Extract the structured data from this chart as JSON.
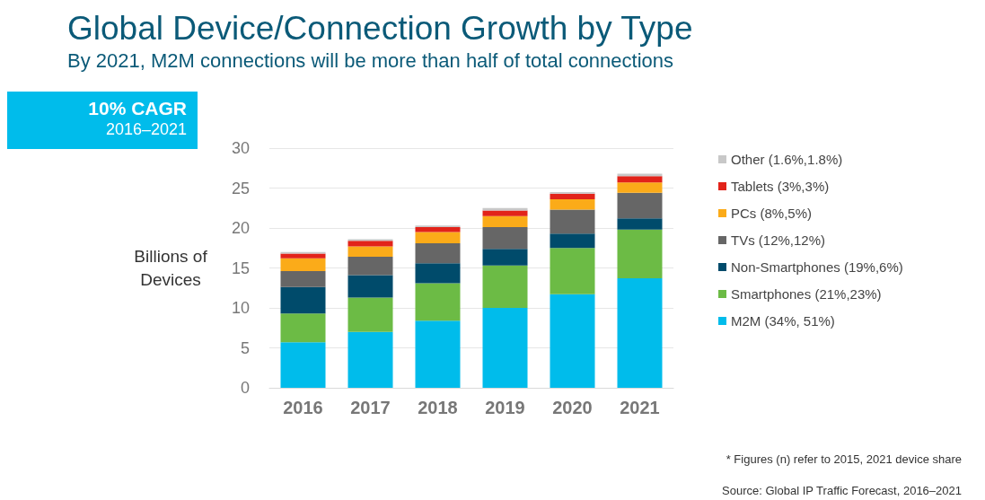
{
  "chart_data": {
    "type": "bar",
    "title": "Global Device/Connection Growth by Type",
    "subtitle": "By 2021, M2M connections will be more than half of total connections",
    "ylabel": "Billions of\nDevices",
    "categories": [
      "2016",
      "2017",
      "2018",
      "2019",
      "2020",
      "2021"
    ],
    "stacked": true,
    "ylim": [
      0,
      30
    ],
    "yticks": [
      0,
      5,
      10,
      15,
      20,
      25,
      30
    ],
    "grid": "y",
    "legend": "right",
    "annotations": [
      "10% CAGR",
      "2016–2021",
      "* Figures (n) refer to 2015, 2021 device share",
      "Source: Global IP Traffic Forecast, 2016–2021"
    ],
    "series": [
      {
        "name": "M2M (34%, 51%)",
        "color": "#00bceb",
        "values": [
          5.7,
          7.0,
          8.4,
          10.0,
          11.7,
          13.7
        ]
      },
      {
        "name": "Smartphones (21%,23%)",
        "color": "#6cbb45",
        "values": [
          3.6,
          4.3,
          4.7,
          5.3,
          5.8,
          6.1
        ]
      },
      {
        "name": "Non-Smartphones (19%,6%)",
        "color": "#004b6b",
        "values": [
          3.3,
          2.8,
          2.5,
          2.1,
          1.8,
          1.4
        ]
      },
      {
        "name": "TVs (12%,12%)",
        "color": "#666666",
        "values": [
          2.0,
          2.3,
          2.5,
          2.7,
          3.0,
          3.2
        ]
      },
      {
        "name": "PCs (8%,5%)",
        "color": "#fbab19",
        "values": [
          1.6,
          1.3,
          1.4,
          1.4,
          1.3,
          1.3
        ]
      },
      {
        "name": "Tablets (3%,3%)",
        "color": "#e2231a",
        "values": [
          0.6,
          0.7,
          0.6,
          0.7,
          0.7,
          0.8
        ]
      },
      {
        "name": "Other (1.6%,1.8%)",
        "color": "#c8c8c8",
        "values": [
          0.2,
          0.2,
          0.2,
          0.3,
          0.2,
          0.3
        ]
      }
    ]
  }
}
